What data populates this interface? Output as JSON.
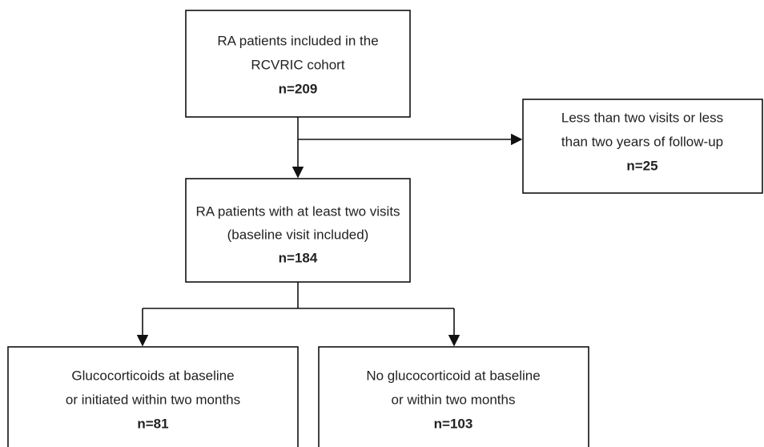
{
  "nodes": [
    {
      "lines": [
        "RA patients included in the",
        "RCVRIC cohort"
      ],
      "count": "n=209"
    },
    {
      "lines": [
        "Less than two visits or less",
        "than two years of follow-up"
      ],
      "count": "n=25"
    },
    {
      "lines": [
        "RA patients with at least two visits",
        "(baseline visit included)"
      ],
      "count": "n=184"
    },
    {
      "lines": [
        "Glucocorticoids at baseline",
        "or initiated within two months"
      ],
      "count": "n=81"
    },
    {
      "lines": [
        "No glucocorticoid at baseline",
        "or within two months"
      ],
      "count": "n=103"
    }
  ]
}
